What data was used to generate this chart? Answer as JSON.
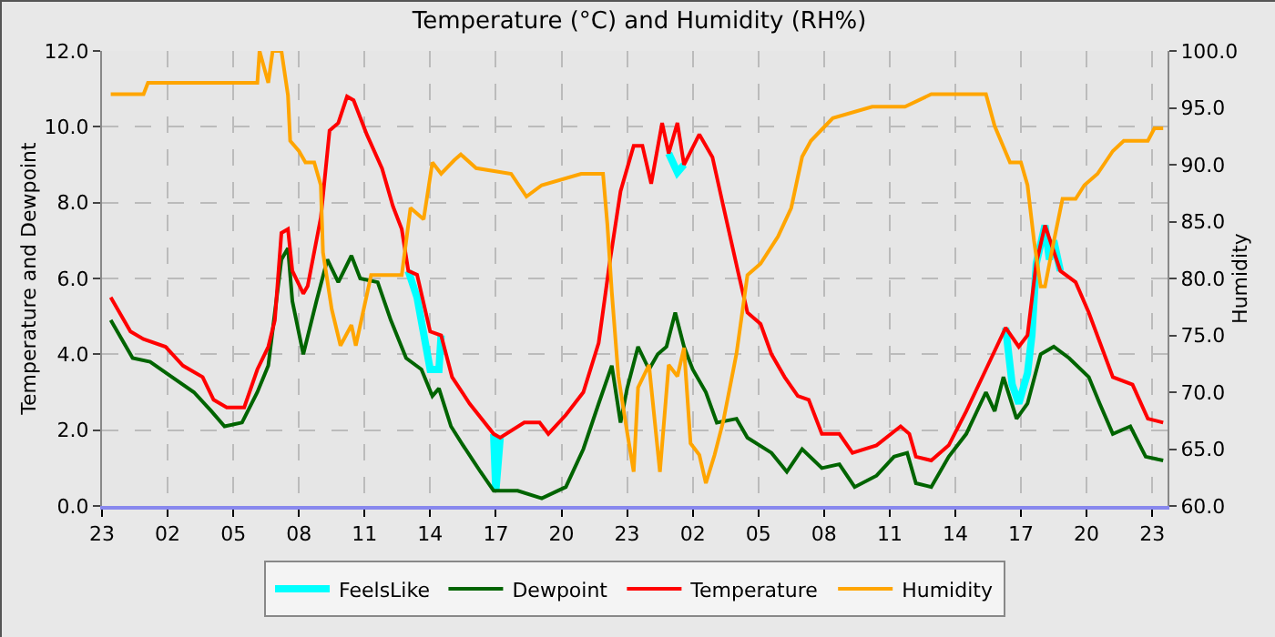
{
  "chart_data": {
    "type": "line",
    "title": "Temperature (°C) and Humidity (RH%)",
    "ylabel": "Temperature and Dewpoint",
    "y2label": "Humidity",
    "xlim": [
      "--01-01T23:00",
      "--01-03T23:42"
    ],
    "xticks": [
      {
        "value": "--01-01T23:00",
        "label": "23"
      },
      {
        "value": "--01-02T02:00",
        "label": "02"
      },
      {
        "value": "--01-02T05:00",
        "label": "05"
      },
      {
        "value": "--01-02T08:00",
        "label": "08"
      },
      {
        "value": "--01-02T11:00",
        "label": "11"
      },
      {
        "value": "--01-02T14:00",
        "label": "14"
      },
      {
        "value": "--01-02T17:00",
        "label": "17"
      },
      {
        "value": "--01-02T20:00",
        "label": "20"
      },
      {
        "value": "--01-02T23:00",
        "label": "23"
      },
      {
        "value": "--01-03T02:00",
        "label": "02"
      },
      {
        "value": "--01-03T05:00",
        "label": "05"
      },
      {
        "value": "--01-03T08:00",
        "label": "08"
      },
      {
        "value": "--01-03T11:00",
        "label": "11"
      },
      {
        "value": "--01-03T14:00",
        "label": "14"
      },
      {
        "value": "--01-03T17:00",
        "label": "17"
      },
      {
        "value": "--01-03T20:00",
        "label": "20"
      },
      {
        "value": "--01-03T23:00",
        "label": "23"
      }
    ],
    "ylim": [
      0,
      12
    ],
    "yticks": [
      {
        "value": 0,
        "label": "0.0"
      },
      {
        "value": 2,
        "label": "2.0"
      },
      {
        "value": 4,
        "label": "4.0"
      },
      {
        "value": 6,
        "label": "6.0"
      },
      {
        "value": 8,
        "label": "8.0"
      },
      {
        "value": 10,
        "label": "10.0"
      },
      {
        "value": 12,
        "label": "12.0"
      }
    ],
    "y2lim": [
      60,
      100
    ],
    "y2ticks": [
      {
        "value": 60,
        "label": "60.0"
      },
      {
        "value": 65,
        "label": "65.0"
      },
      {
        "value": 70,
        "label": "70.0"
      },
      {
        "value": 75,
        "label": "75.0"
      },
      {
        "value": 80,
        "label": "80.0"
      },
      {
        "value": 85,
        "label": "85.0"
      },
      {
        "value": 90,
        "label": "90.0"
      },
      {
        "value": 95,
        "label": "95.0"
      },
      {
        "value": 100,
        "label": "100.0"
      }
    ],
    "grid": true,
    "legend": "bottom",
    "marker": "none",
    "line_style": "solid",
    "series": [
      {
        "name": "FeelsLike",
        "color": "#00ffff",
        "x": [
          "--01-02T13:00",
          "--01-02T13:24",
          "--01-02T14:00",
          "--01-02T14:24",
          "--01-02T14:30",
          null,
          "--01-02T16:54",
          "--01-02T17:00",
          "--01-02T17:12",
          null,
          "--01-03T00:54",
          "--01-03T01:18",
          "--01-03T01:36",
          null,
          "--01-03T16:18",
          "--01-03T16:36",
          "--01-03T16:54",
          "--01-03T17:18",
          "--01-03T17:30",
          "--01-03T17:42",
          "--01-03T18:06",
          "--01-03T18:18",
          "--01-03T18:30",
          "--01-03T18:48"
        ],
        "values": [
          6.2,
          5.5,
          3.6,
          3.6,
          4.5,
          null,
          1.9,
          0.4,
          1.8,
          null,
          9.3,
          8.8,
          9,
          null,
          4.7,
          3.2,
          2.7,
          3.5,
          4.5,
          6.4,
          7.4,
          6.5,
          7,
          6.2
        ]
      },
      {
        "name": "Dewpoint",
        "color": "#006400",
        "x": [
          "--01-01T23:24",
          "--01-02T00:24",
          "--01-02T01:12",
          "--01-02T02:12",
          "--01-02T03:12",
          "--01-02T04:00",
          "--01-02T04:36",
          "--01-02T05:24",
          "--01-02T06:06",
          "--01-02T06:36",
          "--01-02T07:12",
          "--01-02T07:30",
          "--01-02T07:42",
          "--01-02T08:12",
          "--01-02T08:48",
          "--01-02T09:18",
          "--01-02T09:48",
          "--01-02T10:24",
          "--01-02T10:48",
          "--01-02T11:36",
          "--01-02T12:12",
          "--01-02T12:54",
          "--01-02T13:36",
          "--01-02T14:06",
          "--01-02T14:24",
          "--01-02T14:57",
          "--01-02T15:30",
          "--01-02T16:18",
          "--01-02T16:54",
          "--01-02T18:00",
          "--01-02T19:06",
          "--01-02T20:12",
          "--01-02T21:00",
          "--01-02T21:42",
          "--01-02T22:18",
          "--01-02T22:42",
          "--01-02T23:00",
          "--01-02T23:30",
          "--01-03T00:00",
          "--01-03T00:24",
          "--01-03T00:48",
          "--01-03T01:12",
          "--01-03T01:36",
          "--01-03T02:00",
          "--01-03T02:36",
          "--01-03T03:06",
          "--01-03T04:00",
          "--01-03T04:30",
          "--01-03T05:36",
          "--01-03T06:18",
          "--01-03T07:00",
          "--01-03T07:54",
          "--01-03T08:42",
          "--01-03T09:24",
          "--01-03T10:24",
          "--01-03T11:12",
          "--01-03T11:48",
          "--01-03T12:12",
          "--01-03T12:54",
          "--01-03T13:42",
          "--01-03T14:30",
          "--01-03T15:24",
          "--01-03T15:48",
          "--01-03T16:12",
          "--01-03T16:48",
          "--01-03T17:18",
          "--01-03T17:54",
          "--01-03T18:30",
          "--01-03T19:12",
          "--01-03T20:06",
          "--01-03T20:36",
          "--01-03T21:12",
          "--01-03T22:00",
          "--01-03T22:42",
          "--01-03T23:30"
        ],
        "values": [
          4.9,
          3.9,
          3.8,
          3.4,
          3,
          2.5,
          2.1,
          2.2,
          3,
          3.7,
          6.5,
          6.8,
          5.4,
          4,
          5.4,
          6.5,
          5.9,
          6.6,
          6,
          5.9,
          4.9,
          3.9,
          3.6,
          2.9,
          3.1,
          2.1,
          1.6,
          0.9,
          0.4,
          0.4,
          0.2,
          0.5,
          1.5,
          2.7,
          3.7,
          2.2,
          3.1,
          4.2,
          3.6,
          4,
          4.2,
          5.1,
          4.2,
          3.6,
          3,
          2.2,
          2.3,
          1.8,
          1.4,
          0.9,
          1.5,
          1,
          1.1,
          0.5,
          0.8,
          1.3,
          1.4,
          0.6,
          0.5,
          1.3,
          1.9,
          3,
          2.5,
          3.4,
          2.3,
          2.7,
          4,
          4.2,
          3.9,
          3.4,
          2.7,
          1.9,
          2.1,
          1.3,
          1.2
        ]
      },
      {
        "name": "Temperature",
        "color": "#ff0000",
        "x": [
          "--01-01T23:24",
          "--01-02T00:18",
          "--01-02T00:54",
          "--01-02T01:54",
          "--01-02T02:42",
          "--01-02T03:36",
          "--01-02T04:06",
          "--01-02T04:42",
          "--01-02T05:30",
          "--01-02T06:06",
          "--01-02T06:36",
          "--01-02T06:54",
          "--01-02T07:12",
          "--01-02T07:30",
          "--01-02T07:42",
          "--01-02T08:12",
          "--01-02T08:24",
          "--01-02T09:00",
          "--01-02T09:24",
          "--01-02T09:48",
          "--01-02T10:12",
          "--01-02T10:30",
          "--01-02T11:06",
          "--01-02T11:48",
          "--01-02T12:18",
          "--01-02T12:42",
          "--01-02T13:00",
          "--01-02T13:24",
          "--01-02T14:00",
          "--01-02T14:30",
          "--01-02T15:00",
          "--01-02T15:48",
          "--01-02T16:54",
          "--01-02T17:12",
          "--01-02T18:18",
          "--01-02T19:00",
          "--01-02T19:24",
          "--01-02T20:12",
          "--01-02T21:00",
          "--01-02T21:42",
          "--01-02T22:12",
          "--01-02T22:42",
          "--01-02T23:18",
          "--01-02T23:42",
          "--01-03T00:06",
          "--01-03T00:36",
          "--01-03T00:54",
          "--01-03T01:18",
          "--01-03T01:36",
          "--01-03T02:18",
          "--01-03T02:54",
          "--01-03T03:24",
          "--01-03T04:06",
          "--01-03T04:30",
          "--01-03T05:06",
          "--01-03T05:36",
          "--01-03T06:12",
          "--01-03T06:48",
          "--01-03T07:18",
          "--01-03T07:54",
          "--01-03T08:42",
          "--01-03T09:18",
          "--01-03T10:24",
          "--01-03T11:30",
          "--01-03T11:54",
          "--01-03T12:12",
          "--01-03T12:54",
          "--01-03T13:42",
          "--01-03T14:30",
          "--01-03T15:24",
          "--01-03T16:18",
          "--01-03T16:54",
          "--01-03T17:18",
          "--01-03T17:42",
          "--01-03T18:06",
          "--01-03T18:48",
          "--01-03T19:30",
          "--01-03T20:06",
          "--01-03T21:12",
          "--01-03T22:06",
          "--01-03T22:48",
          "--01-03T23:30"
        ],
        "values": [
          5.5,
          4.6,
          4.4,
          4.2,
          3.7,
          3.4,
          2.8,
          2.6,
          2.6,
          3.6,
          4.2,
          4.9,
          7.2,
          7.3,
          6.2,
          5.6,
          5.8,
          7.6,
          9.9,
          10.1,
          10.8,
          10.7,
          9.8,
          8.9,
          7.9,
          7.3,
          6.2,
          6.1,
          4.6,
          4.5,
          3.4,
          2.7,
          1.9,
          1.8,
          2.2,
          2.2,
          1.9,
          2.4,
          3,
          4.3,
          6.4,
          8.3,
          9.5,
          9.5,
          8.5,
          10.1,
          9.3,
          10.1,
          9,
          9.8,
          9.2,
          7.9,
          6.1,
          5.1,
          4.8,
          4,
          3.4,
          2.9,
          2.8,
          1.9,
          1.9,
          1.4,
          1.6,
          2.1,
          1.9,
          1.3,
          1.2,
          1.6,
          2.5,
          3.6,
          4.7,
          4.2,
          4.5,
          6.4,
          7.4,
          6.2,
          5.9,
          5.1,
          3.4,
          3.2,
          2.3,
          2.2
        ]
      },
      {
        "name": "Humidity",
        "color": "#ffa500",
        "axis": "y2",
        "x": [
          "--01-01T23:24",
          "--01-02T00:54",
          "--01-02T01:06",
          "--01-02T06:06",
          "--01-02T06:12",
          "--01-02T06:36",
          "--01-02T06:48",
          "--01-02T07:12",
          "--01-02T07:30",
          "--01-02T07:36",
          "--01-02T08:00",
          "--01-02T08:18",
          "--01-02T08:42",
          "--01-02T09:00",
          "--01-02T09:06",
          "--01-02T09:30",
          "--01-02T09:54",
          "--01-02T10:24",
          "--01-02T10:36",
          "--01-02T11:18",
          "--01-02T12:42",
          "--01-02T13:06",
          "--01-02T13:42",
          "--01-02T14:06",
          "--01-02T14:30",
          "--01-02T15:06",
          "--01-02T15:24",
          "--01-02T16:06",
          "--01-02T17:42",
          "--01-02T18:24",
          "--01-02T19:06",
          "--01-02T20:54",
          "--01-02T21:54",
          "--01-02T22:06",
          "--01-02T22:18",
          "--01-02T22:36",
          "--01-02T23:00",
          "--01-02T23:18",
          "--01-02T23:30",
          "--01-03T00:00",
          "--01-03T00:30",
          "--01-03T00:54",
          "--01-03T01:18",
          "--01-03T01:36",
          "--01-03T01:54",
          "--01-03T02:18",
          "--01-03T02:36",
          "--01-03T03:00",
          "--01-03T03:24",
          "--01-03T04:00",
          "--01-03T04:30",
          "--01-03T05:06",
          "--01-03T05:54",
          "--01-03T06:30",
          "--01-03T07:00",
          "--01-03T07:24",
          "--01-03T07:54",
          "--01-03T08:24",
          "--01-03T10:12",
          "--01-03T11:42",
          "--01-03T12:54",
          "--01-03T15:24",
          "--01-03T15:48",
          "--01-03T16:30",
          "--01-03T17:00",
          "--01-03T17:18",
          "--01-03T17:36",
          "--01-03T17:54",
          "--01-03T18:06",
          "--01-03T18:24",
          "--01-03T18:54",
          "--01-03T19:30",
          "--01-03T19:54",
          "--01-03T20:30",
          "--01-03T21:12",
          "--01-03T21:42",
          "--01-03T22:48",
          "--01-03T23:06",
          "--01-03T23:30"
        ],
        "values": [
          96.2,
          96.2,
          97.2,
          97.2,
          100,
          97.2,
          100,
          100,
          96.1,
          92.1,
          91.2,
          90.2,
          90.2,
          88.2,
          82.3,
          77.3,
          74.1,
          75.9,
          74.1,
          80.3,
          80.3,
          86.2,
          85.2,
          90.2,
          89.2,
          90.4,
          90.9,
          89.7,
          89.2,
          87.2,
          88.2,
          89.2,
          89.2,
          84.7,
          78.8,
          71.4,
          66.5,
          63,
          70.4,
          72.4,
          63,
          72.4,
          71.4,
          73.9,
          65.5,
          64.5,
          62,
          64.5,
          67.5,
          73.4,
          80.3,
          81.3,
          83.7,
          86.2,
          90.7,
          92.1,
          93.1,
          94.1,
          95.1,
          95.1,
          96.2,
          96.2,
          93.4,
          90.2,
          90.2,
          88.2,
          83.3,
          79.3,
          79.3,
          82.3,
          87,
          87,
          88.2,
          89.2,
          91.2,
          92.1,
          92.1,
          93.2,
          93.2
        ]
      }
    ]
  }
}
